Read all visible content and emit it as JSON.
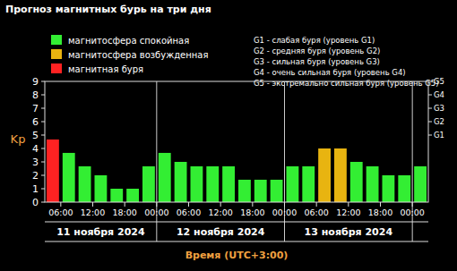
{
  "chart_data": {
    "type": "bar",
    "title": "Прогноз магнитных бурь на три дня",
    "y_label": "Kp",
    "x_label": "Время (UTC+3:00)",
    "categories": [
      "06:00",
      null,
      "12:00",
      null,
      "18:00",
      null,
      "00:00",
      null,
      "06:00",
      null,
      "12:00",
      null,
      "18:00",
      null,
      "00:00",
      null,
      "06:00",
      null,
      "12:00",
      null,
      "18:00",
      null,
      "00:00",
      null
    ],
    "values": [
      4.67,
      3.67,
      2.67,
      2,
      1,
      1,
      2.67,
      3.67,
      3,
      2.67,
      2.67,
      2.67,
      1.67,
      1.67,
      1.67,
      2.67,
      2.67,
      4,
      4,
      3,
      2.67,
      2,
      2,
      2.67
    ],
    "colors": [
      "#ff2222",
      "#33ee33",
      "#33ee33",
      "#33ee33",
      "#33ee33",
      "#33ee33",
      "#33ee33",
      "#33ee33",
      "#33ee33",
      "#33ee33",
      "#33ee33",
      "#33ee33",
      "#33ee33",
      "#33ee33",
      "#33ee33",
      "#33ee33",
      "#33ee33",
      "#e8b410",
      "#e8b410",
      "#33ee33",
      "#33ee33",
      "#33ee33",
      "#33ee33",
      "#33ee33"
    ],
    "ylim": [
      0,
      9
    ],
    "yticks": [
      0,
      1,
      2,
      3,
      4,
      5,
      6,
      7,
      8,
      9
    ],
    "y2lim": [
      0,
      9
    ],
    "y2ticks": [
      {
        "value": 5,
        "label": "G1"
      },
      {
        "value": 6,
        "label": "G2"
      },
      {
        "value": 7,
        "label": "G3"
      },
      {
        "value": 8,
        "label": "G4"
      },
      {
        "value": 9,
        "label": "G5"
      }
    ],
    "grid": false,
    "legend_entries": [
      {
        "label": "магнитосфера спокойная",
        "color": "#33ee33"
      },
      {
        "label": "магнитосфера возбужденная",
        "color": "#e8b410"
      },
      {
        "label": "магнитная буря",
        "color": "#ff2222"
      }
    ],
    "g_legend": [
      "G1 - слабая буря (уровень G1)",
      "G2 - средняя буря (уровень G2)",
      "G3 - сильная буря (уровень G3)",
      "G4 - очень сильная буря (уровень G4)",
      "G5 - экстремально сильная буря (уровень G5)"
    ],
    "dates": [
      "11 ноября 2024",
      "12 ноября 2024",
      "13 ноября 2024"
    ]
  }
}
